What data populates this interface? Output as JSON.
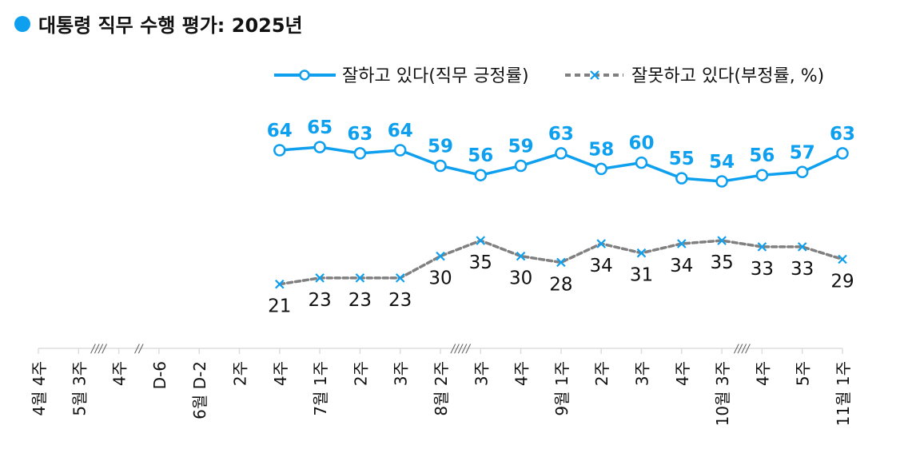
{
  "title": "대통령 직무 수행 평가: 2025년",
  "colors": {
    "positive": "#0ea0ef",
    "negative": "#808080",
    "title_dot": "#0ea0ef"
  },
  "chart_data": {
    "type": "line",
    "title": "대통령 직무 수행 평가: 2025년",
    "categories": [
      "4월 4주",
      "5월 3주",
      "4주",
      "D-6",
      "6월 D-2",
      "2주",
      "4주",
      "7월 1주",
      "2주",
      "3주",
      "8월 2주",
      "3주",
      "4주",
      "9월 1주",
      "2주",
      "3주",
      "4주",
      "10월 3주",
      "4주",
      "5주",
      "11월 1주"
    ],
    "break_marks": [
      {
        "after": "5월 3주",
        "mark": "////"
      },
      {
        "after": "4주",
        "mark": "//"
      },
      {
        "after": "8월 2주",
        "mark": "/////"
      },
      {
        "after": "10월 3주",
        "mark": "////"
      }
    ],
    "series": [
      {
        "name": "잘하고 있다(직무 긍정률)",
        "style": "solid-circle",
        "values": [
          null,
          null,
          null,
          null,
          null,
          null,
          64,
          65,
          63,
          64,
          59,
          56,
          59,
          63,
          58,
          60,
          55,
          54,
          56,
          57,
          63
        ]
      },
      {
        "name": "잘못하고 있다(부정률, %)",
        "style": "dashed-x",
        "values": [
          null,
          null,
          null,
          null,
          null,
          null,
          21,
          23,
          23,
          23,
          30,
          35,
          30,
          28,
          34,
          31,
          34,
          35,
          33,
          33,
          29
        ]
      }
    ],
    "ylim": [
      0,
      70
    ],
    "grid": false,
    "legend": "top-right",
    "xlabel": "",
    "ylabel": ""
  }
}
